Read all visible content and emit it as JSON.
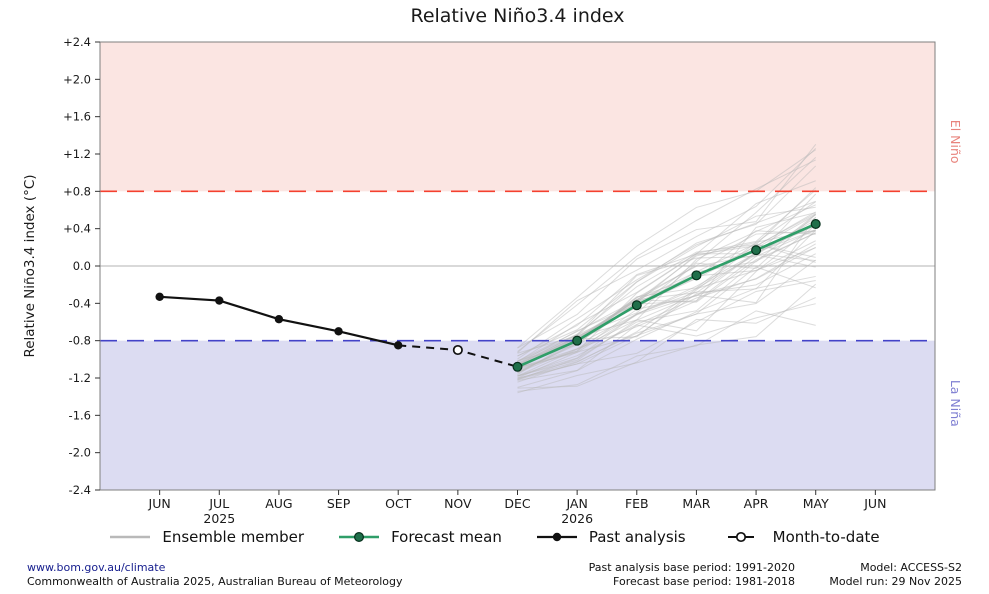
{
  "title": "Relative Niño3.4 index",
  "chart_data": {
    "type": "line",
    "title": "Relative Niño3.4 index",
    "ylabel": "Relative Niño3.4 index (°C)",
    "ylim": [
      -2.4,
      2.4
    ],
    "ytick_step": 0.4,
    "x_categories": [
      "JUN",
      "JUL",
      "AUG",
      "SEP",
      "OCT",
      "NOV",
      "DEC",
      "JAN",
      "FEB",
      "MAR",
      "APR",
      "MAY",
      "JUN"
    ],
    "year_labels": [
      {
        "x_index": 1,
        "label": "2025"
      },
      {
        "x_index": 7,
        "label": "2026"
      }
    ],
    "zero_line": {
      "value": 0.0,
      "color": "#b3b3b3"
    },
    "thresholds": [
      {
        "name": "El Niño threshold",
        "value": 0.8,
        "color": "#f4402f",
        "band_fill": "#fbe5e2",
        "label": "El Niño",
        "label_color": "#e8837c"
      },
      {
        "name": "La Niña threshold",
        "value": -0.8,
        "color": "#4343c8",
        "band_fill": "#dcdcf2",
        "label": "La Niña",
        "label_color": "#7f7fd2"
      }
    ],
    "series": [
      {
        "name": "Past analysis",
        "kind": "past",
        "color": "#111111",
        "x_index": [
          0,
          1,
          2,
          3,
          4
        ],
        "values": [
          -0.33,
          -0.37,
          -0.57,
          -0.7,
          -0.85
        ]
      },
      {
        "name": "Month-to-date",
        "kind": "month_to_date",
        "color": "#111111",
        "marker_fill": "#ffffff",
        "x_index": [
          5
        ],
        "values": [
          -0.9
        ]
      },
      {
        "name": "Forecast mean",
        "kind": "forecast",
        "color": "#2f9e68",
        "marker_fill": "#1f6f4a",
        "x_index": [
          6,
          7,
          8,
          9,
          10,
          11
        ],
        "values": [
          -1.08,
          -0.8,
          -0.42,
          -0.1,
          0.17,
          0.45
        ]
      }
    ],
    "ensemble": {
      "name": "Ensemble member",
      "count": 50,
      "color": "#b9b9b9",
      "opacity": 0.5,
      "x_index": [
        6,
        7,
        8,
        9,
        10,
        11
      ],
      "spread_sigma": [
        0.12,
        0.2,
        0.28,
        0.33,
        0.36,
        0.4
      ],
      "noise": 0.05,
      "seed": 20251129
    }
  },
  "legend": {
    "items": [
      {
        "label": "Ensemble member",
        "kind": "ensemble"
      },
      {
        "label": "Forecast mean",
        "kind": "forecast"
      },
      {
        "label": "Past analysis",
        "kind": "past"
      },
      {
        "label": "Month-to-date",
        "kind": "month_to_date"
      }
    ]
  },
  "footer": {
    "website": "www.bom.gov.au/climate",
    "copyright": "Commonwealth of Australia 2025, Australian Bureau of Meteorology",
    "past_base_period": "Past analysis base period: 1991-2020",
    "forecast_base_period": "Forecast base period: 1981-2018",
    "model": "Model: ACCESS-S2",
    "model_run": "Model run: 29 Nov 2025"
  }
}
